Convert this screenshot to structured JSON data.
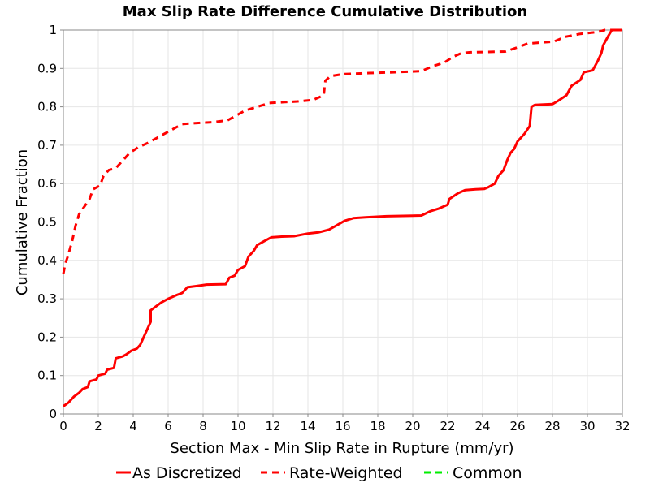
{
  "chart_data": {
    "type": "line",
    "title": "Max Slip Rate Difference Cumulative Distribution",
    "xlabel": "Section Max - Min Slip Rate in Rupture (mm/yr)",
    "ylabel": "Cumulative Fraction",
    "xlim": [
      0,
      32
    ],
    "ylim": [
      0,
      1
    ],
    "x_ticks": [
      0,
      2,
      4,
      6,
      8,
      10,
      12,
      14,
      16,
      18,
      20,
      22,
      24,
      26,
      28,
      30,
      32
    ],
    "y_ticks": [
      0,
      0.1,
      0.2,
      0.3,
      0.4,
      0.5,
      0.6,
      0.7,
      0.8,
      0.9,
      1
    ],
    "y_tick_labels": [
      "0",
      "0.1",
      "0.2",
      "0.3",
      "0.4",
      "0.5",
      "0.6",
      "0.7",
      "0.8",
      "0.9",
      "1"
    ],
    "grid": true,
    "legend_position": "bottom",
    "series": [
      {
        "name": "As Discretized",
        "color": "#ff0000",
        "style": "solid",
        "points": [
          [
            0,
            0.02
          ],
          [
            0.3,
            0.03
          ],
          [
            0.6,
            0.045
          ],
          [
            0.9,
            0.055
          ],
          [
            1.1,
            0.065
          ],
          [
            1.4,
            0.07
          ],
          [
            1.5,
            0.085
          ],
          [
            1.9,
            0.09
          ],
          [
            2.0,
            0.1
          ],
          [
            2.4,
            0.105
          ],
          [
            2.5,
            0.115
          ],
          [
            2.9,
            0.12
          ],
          [
            3.0,
            0.145
          ],
          [
            3.4,
            0.15
          ],
          [
            3.6,
            0.155
          ],
          [
            3.9,
            0.165
          ],
          [
            4.2,
            0.17
          ],
          [
            4.4,
            0.18
          ],
          [
            4.6,
            0.2
          ],
          [
            4.8,
            0.22
          ],
          [
            5.0,
            0.24
          ],
          [
            5.0,
            0.27
          ],
          [
            5.3,
            0.28
          ],
          [
            5.6,
            0.29
          ],
          [
            6.0,
            0.3
          ],
          [
            6.5,
            0.31
          ],
          [
            6.8,
            0.315
          ],
          [
            7.1,
            0.33
          ],
          [
            7.6,
            0.333
          ],
          [
            8.2,
            0.337
          ],
          [
            9.3,
            0.338
          ],
          [
            9.5,
            0.355
          ],
          [
            9.8,
            0.36
          ],
          [
            10.0,
            0.375
          ],
          [
            10.4,
            0.385
          ],
          [
            10.6,
            0.41
          ],
          [
            10.9,
            0.425
          ],
          [
            11.1,
            0.44
          ],
          [
            11.5,
            0.45
          ],
          [
            11.9,
            0.46
          ],
          [
            12.5,
            0.462
          ],
          [
            13.2,
            0.463
          ],
          [
            14.0,
            0.47
          ],
          [
            14.6,
            0.473
          ],
          [
            15.2,
            0.48
          ],
          [
            15.6,
            0.49
          ],
          [
            16.1,
            0.503
          ],
          [
            16.6,
            0.51
          ],
          [
            17.3,
            0.512
          ],
          [
            18.5,
            0.515
          ],
          [
            20.5,
            0.517
          ],
          [
            21.0,
            0.528
          ],
          [
            21.5,
            0.535
          ],
          [
            22.0,
            0.545
          ],
          [
            22.1,
            0.56
          ],
          [
            22.6,
            0.575
          ],
          [
            23.0,
            0.583
          ],
          [
            23.6,
            0.585
          ],
          [
            24.1,
            0.586
          ],
          [
            24.3,
            0.59
          ],
          [
            24.7,
            0.6
          ],
          [
            24.9,
            0.62
          ],
          [
            25.2,
            0.635
          ],
          [
            25.4,
            0.66
          ],
          [
            25.6,
            0.68
          ],
          [
            25.8,
            0.69
          ],
          [
            26.0,
            0.71
          ],
          [
            26.4,
            0.73
          ],
          [
            26.7,
            0.75
          ],
          [
            26.8,
            0.8
          ],
          [
            27.0,
            0.805
          ],
          [
            28.0,
            0.807
          ],
          [
            28.3,
            0.815
          ],
          [
            28.8,
            0.83
          ],
          [
            29.1,
            0.855
          ],
          [
            29.6,
            0.87
          ],
          [
            29.8,
            0.89
          ],
          [
            30.3,
            0.895
          ],
          [
            30.6,
            0.92
          ],
          [
            30.8,
            0.94
          ],
          [
            30.9,
            0.96
          ],
          [
            31.2,
            0.985
          ],
          [
            31.4,
            1.0
          ],
          [
            32,
            1.0
          ]
        ]
      },
      {
        "name": "Rate-Weighted",
        "color": "#ff0000",
        "style": "dashed",
        "points": [
          [
            0,
            0.365
          ],
          [
            0.1,
            0.39
          ],
          [
            0.25,
            0.41
          ],
          [
            0.5,
            0.45
          ],
          [
            0.7,
            0.49
          ],
          [
            0.9,
            0.52
          ],
          [
            1.2,
            0.54
          ],
          [
            1.5,
            0.56
          ],
          [
            1.7,
            0.585
          ],
          [
            2.1,
            0.595
          ],
          [
            2.3,
            0.62
          ],
          [
            2.6,
            0.635
          ],
          [
            3.0,
            0.64
          ],
          [
            3.4,
            0.66
          ],
          [
            3.8,
            0.68
          ],
          [
            4.3,
            0.695
          ],
          [
            4.8,
            0.705
          ],
          [
            5.4,
            0.72
          ],
          [
            5.8,
            0.73
          ],
          [
            6.4,
            0.745
          ],
          [
            6.8,
            0.755
          ],
          [
            7.4,
            0.757
          ],
          [
            8.6,
            0.76
          ],
          [
            9.4,
            0.765
          ],
          [
            10.0,
            0.78
          ],
          [
            10.4,
            0.79
          ],
          [
            11.1,
            0.8
          ],
          [
            11.8,
            0.81
          ],
          [
            12.6,
            0.812
          ],
          [
            13.4,
            0.814
          ],
          [
            14.3,
            0.818
          ],
          [
            14.9,
            0.83
          ],
          [
            15.0,
            0.868
          ],
          [
            15.3,
            0.88
          ],
          [
            16.0,
            0.885
          ],
          [
            17.5,
            0.888
          ],
          [
            19.0,
            0.89
          ],
          [
            20.5,
            0.893
          ],
          [
            21.1,
            0.905
          ],
          [
            21.8,
            0.915
          ],
          [
            22.3,
            0.93
          ],
          [
            22.8,
            0.94
          ],
          [
            23.3,
            0.942
          ],
          [
            25.3,
            0.944
          ],
          [
            26.0,
            0.955
          ],
          [
            26.6,
            0.965
          ],
          [
            28.1,
            0.97
          ],
          [
            28.7,
            0.982
          ],
          [
            29.6,
            0.99
          ],
          [
            30.6,
            0.995
          ],
          [
            31.0,
            1.0
          ],
          [
            32,
            1.0
          ]
        ]
      },
      {
        "name": "Common",
        "color": "#00ee00",
        "style": "dashed",
        "points": []
      }
    ]
  }
}
